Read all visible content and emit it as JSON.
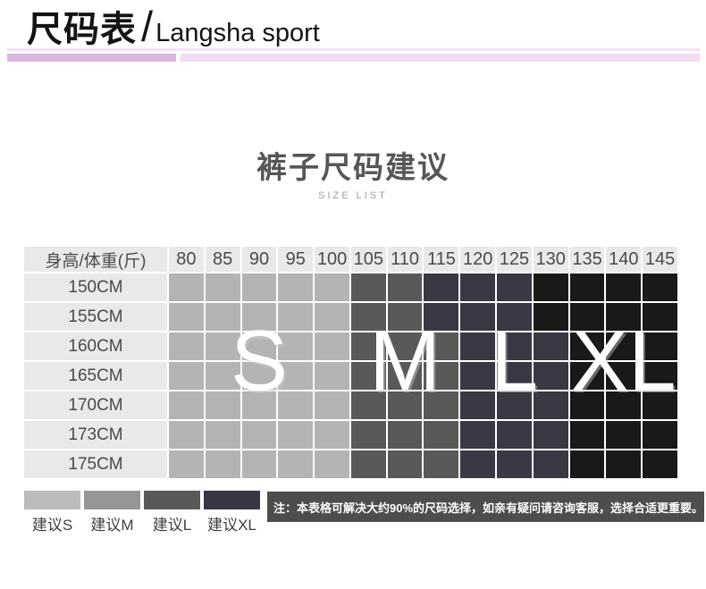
{
  "header": {
    "title_cn": "尺码表",
    "separator": "/",
    "title_en": "Langsha sport"
  },
  "decor": {
    "thin_bar_color": "#f3e2f4",
    "bar_left_color": "#d9b8df",
    "bar_right_color": "#efddf1"
  },
  "section": {
    "title": "裤子尺码建议",
    "subtitle": "SIZE LIST"
  },
  "chart_data": {
    "type": "heatmap",
    "title": "裤子尺码建议",
    "subtitle": "SIZE LIST",
    "corner_label": "身高/体重(斤)",
    "columns": [
      "80",
      "85",
      "90",
      "95",
      "100",
      "105",
      "110",
      "115",
      "120",
      "125",
      "130",
      "135",
      "140",
      "145"
    ],
    "row_labels": [
      "150CM",
      "155CM",
      "160CM",
      "165CM",
      "170CM",
      "173CM",
      "175CM"
    ],
    "cells": [
      [
        "S",
        "S",
        "S",
        "S",
        "S",
        "M",
        "M",
        "L",
        "L",
        "L",
        "XL",
        "XL",
        "XL",
        "XL"
      ],
      [
        "S",
        "S",
        "S",
        "S",
        "S",
        "M",
        "M",
        "L",
        "L",
        "L",
        "XL",
        "XL",
        "XL",
        "XL"
      ],
      [
        "S",
        "S",
        "S",
        "S",
        "S",
        "M",
        "M",
        "M",
        "L",
        "L",
        "L",
        "XL",
        "XL",
        "XL"
      ],
      [
        "S",
        "S",
        "S",
        "S",
        "S",
        "M",
        "M",
        "M",
        "L",
        "L",
        "L",
        "XL",
        "XL",
        "XL"
      ],
      [
        "S",
        "S",
        "S",
        "S",
        "S",
        "M",
        "M",
        "M",
        "L",
        "L",
        "L",
        "XL",
        "XL",
        "XL"
      ],
      [
        "S",
        "S",
        "S",
        "S",
        "S",
        "M",
        "M",
        "M",
        "L",
        "L",
        "L",
        "XL",
        "XL",
        "XL"
      ],
      [
        "S",
        "S",
        "S",
        "S",
        "S",
        "M",
        "M",
        "M",
        "L",
        "L",
        "L",
        "XL",
        "XL",
        "XL"
      ]
    ],
    "size_colors": {
      "S": "#b4b4b4",
      "M": "#595959",
      "L": "#3b3845",
      "XL": "#191919"
    },
    "header_bg": "#e9e9e9",
    "overlay_letters": [
      {
        "label": "S",
        "over_column": "90"
      },
      {
        "label": "M",
        "over_column": "110"
      },
      {
        "label": "L",
        "over_column": "125"
      },
      {
        "label": "XL",
        "over_column": "140"
      }
    ],
    "overlay_rows_span": "160CM-165CM"
  },
  "legend": {
    "items": [
      {
        "label": "建议S",
        "color": "#bcbcbc"
      },
      {
        "label": "建议M",
        "color": "#969696"
      },
      {
        "label": "建议L",
        "color": "#595959"
      },
      {
        "label": "建议XL",
        "color": "#393645"
      }
    ]
  },
  "note": {
    "bg": "#4d4d4d",
    "text": "注：本表格可解决大约90%的尺码选择，如亲有疑问请咨询客服，选择合适更重要。"
  }
}
